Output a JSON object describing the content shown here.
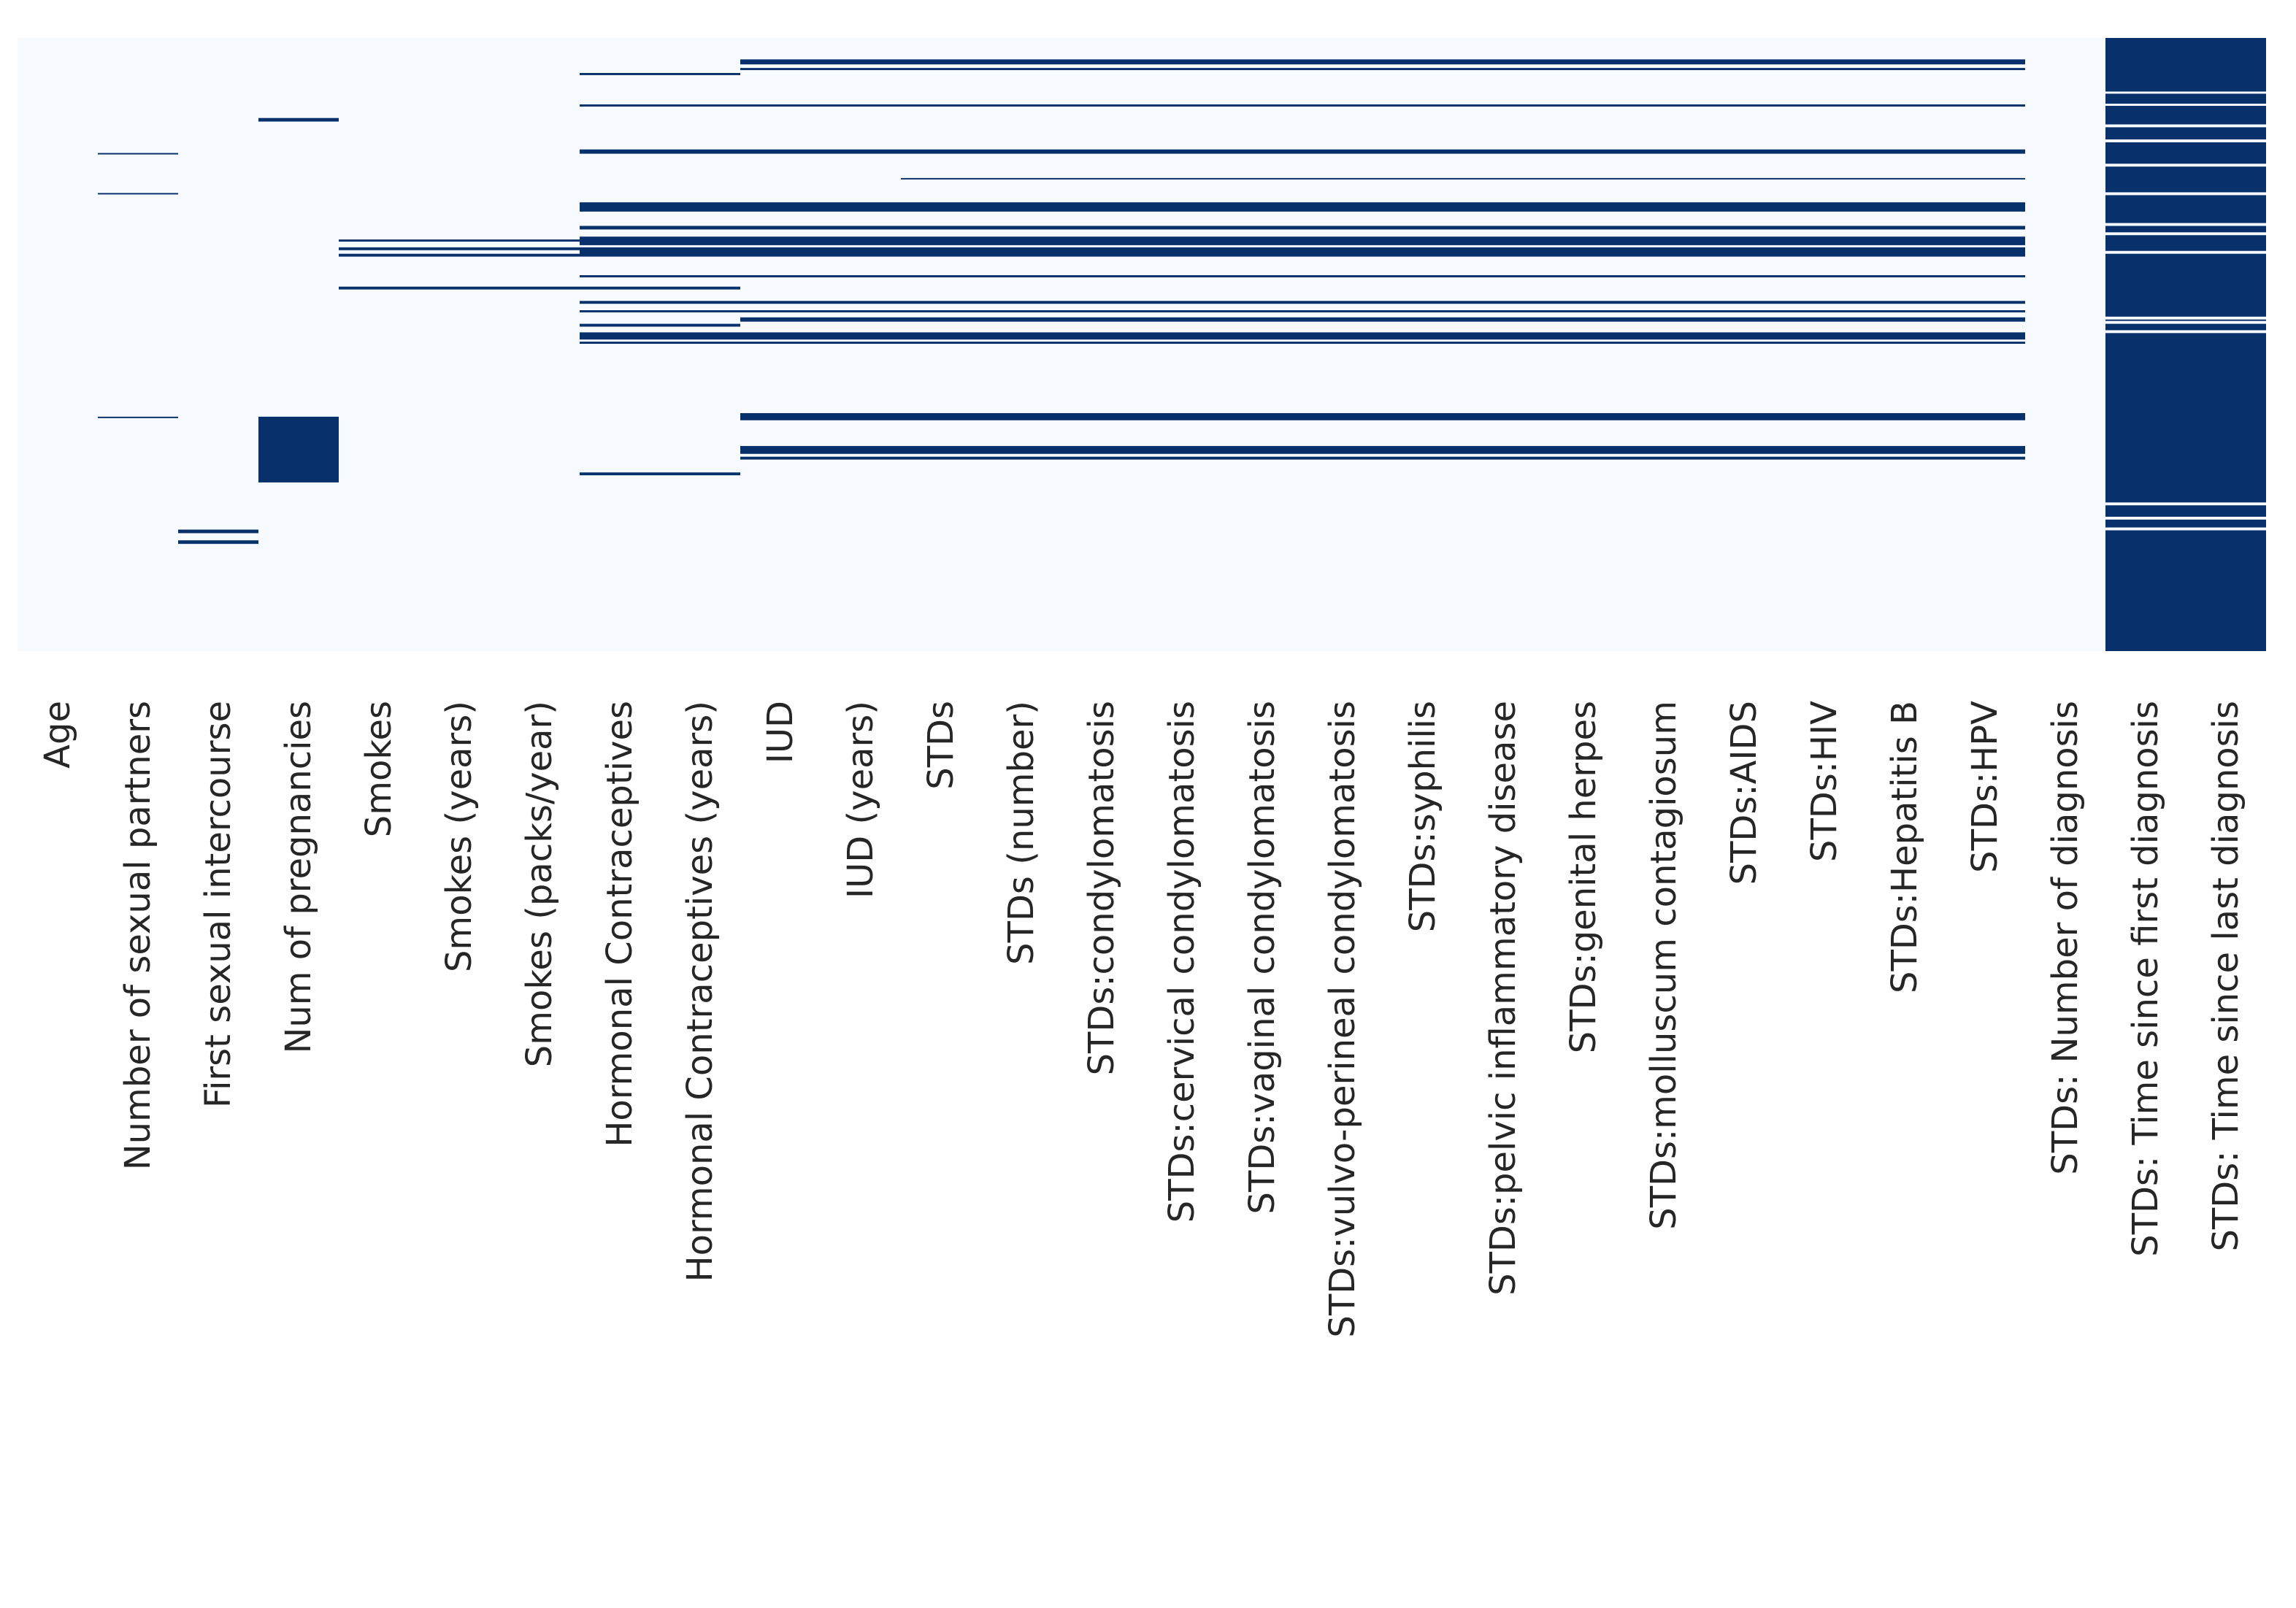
{
  "chart_data": {
    "type": "heatmap",
    "title": "",
    "xlabel": "",
    "ylabel": "",
    "value_meaning": "missing value indicator (1 = missing, 0 = present)",
    "n_rows": 858,
    "colors": {
      "present": "#f7fbff",
      "missing": "#08306b",
      "label": "#262626"
    },
    "columns": [
      "Age",
      "Number of sexual partners",
      "First sexual intercourse",
      "Num of pregnancies",
      "Smokes",
      "Smokes (years)",
      "Smokes (packs/year)",
      "Hormonal Contraceptives",
      "Hormonal Contraceptives (years)",
      "IUD",
      "IUD (years)",
      "STDs",
      "STDs (number)",
      "STDs:condylomatosis",
      "STDs:cervical condylomatosis",
      "STDs:vaginal condylomatosis",
      "STDs:vulvo-perineal condylomatosis",
      "STDs:syphilis",
      "STDs:pelvic inflammatory disease",
      "STDs:genital herpes",
      "STDs:molluscum contagiosum",
      "STDs:AIDS",
      "STDs:HIV",
      "STDs:Hepatitis B",
      "STDs:HPV",
      "STDs: Number of diagnosis",
      "STDs: Time since first diagnosis",
      "STDs: Time since last diagnosis"
    ],
    "missing_segments": [
      {
        "cols": [
          1,
          1
        ],
        "rows": [
          161,
          163
        ]
      },
      {
        "cols": [
          1,
          1
        ],
        "rows": [
          217,
          219
        ]
      },
      {
        "cols": [
          1,
          1
        ],
        "rows": [
          530,
          532
        ]
      },
      {
        "cols": [
          2,
          2
        ],
        "rows": [
          688,
          693
        ]
      },
      {
        "cols": [
          2,
          2
        ],
        "rows": [
          703,
          708
        ]
      },
      {
        "cols": [
          3,
          3
        ],
        "rows": [
          112,
          117
        ]
      },
      {
        "cols": [
          3,
          3
        ],
        "rows": [
          530,
          622
        ]
      },
      {
        "cols": [
          4,
          6
        ],
        "rows": [
          282,
          285
        ]
      },
      {
        "cols": [
          4,
          6
        ],
        "rows": [
          293,
          297
        ]
      },
      {
        "cols": [
          4,
          6
        ],
        "rows": [
          302,
          306
        ]
      },
      {
        "cols": [
          4,
          6
        ],
        "rows": [
          348,
          352
        ]
      },
      {
        "cols": [
          7,
          8
        ],
        "rows": [
          49,
          52
        ]
      },
      {
        "cols": [
          7,
          8
        ],
        "rows": [
          93,
          96
        ]
      },
      {
        "cols": [
          7,
          8
        ],
        "rows": [
          156,
          162
        ]
      },
      {
        "cols": [
          7,
          8
        ],
        "rows": [
          230,
          243
        ]
      },
      {
        "cols": [
          7,
          8
        ],
        "rows": [
          263,
          268
        ]
      },
      {
        "cols": [
          7,
          8
        ],
        "rows": [
          278,
          290
        ]
      },
      {
        "cols": [
          7,
          8
        ],
        "rows": [
          293,
          306
        ]
      },
      {
        "cols": [
          7,
          8
        ],
        "rows": [
          332,
          335
        ]
      },
      {
        "cols": [
          7,
          8
        ],
        "rows": [
          348,
          352
        ]
      },
      {
        "cols": [
          7,
          8
        ],
        "rows": [
          368,
          372
        ]
      },
      {
        "cols": [
          7,
          8
        ],
        "rows": [
          381,
          384
        ]
      },
      {
        "cols": [
          7,
          8
        ],
        "rows": [
          400,
          404
        ]
      },
      {
        "cols": [
          7,
          8
        ],
        "rows": [
          412,
          422
        ]
      },
      {
        "cols": [
          7,
          8
        ],
        "rows": [
          425,
          428
        ]
      },
      {
        "cols": [
          7,
          8
        ],
        "rows": [
          608,
          612
        ]
      },
      {
        "cols": [
          9,
          24
        ],
        "rows": [
          30,
          37
        ]
      },
      {
        "cols": [
          9,
          24
        ],
        "rows": [
          42,
          45
        ]
      },
      {
        "cols": [
          9,
          24
        ],
        "rows": [
          93,
          96
        ]
      },
      {
        "cols": [
          9,
          24
        ],
        "rows": [
          156,
          162
        ]
      },
      {
        "cols": [
          11,
          24
        ],
        "rows": [
          196,
          198
        ]
      },
      {
        "cols": [
          9,
          24
        ],
        "rows": [
          230,
          243
        ]
      },
      {
        "cols": [
          9,
          24
        ],
        "rows": [
          263,
          268
        ]
      },
      {
        "cols": [
          9,
          24
        ],
        "rows": [
          278,
          290
        ]
      },
      {
        "cols": [
          9,
          24
        ],
        "rows": [
          293,
          306
        ]
      },
      {
        "cols": [
          9,
          24
        ],
        "rows": [
          332,
          335
        ]
      },
      {
        "cols": [
          9,
          24
        ],
        "rows": [
          368,
          372
        ]
      },
      {
        "cols": [
          9,
          24
        ],
        "rows": [
          381,
          384
        ]
      },
      {
        "cols": [
          9,
          24
        ],
        "rows": [
          391,
          397
        ]
      },
      {
        "cols": [
          9,
          24
        ],
        "rows": [
          412,
          422
        ]
      },
      {
        "cols": [
          9,
          24
        ],
        "rows": [
          425,
          428
        ]
      },
      {
        "cols": [
          9,
          24
        ],
        "rows": [
          525,
          535
        ]
      },
      {
        "cols": [
          9,
          24
        ],
        "rows": [
          571,
          582
        ]
      },
      {
        "cols": [
          9,
          24
        ],
        "rows": [
          586,
          590
        ]
      },
      {
        "cols": [
          26,
          27
        ],
        "rows": [
          0,
          858
        ]
      }
    ],
    "present_gaps": [
      {
        "cols": [
          26,
          27
        ],
        "rows": [
          75,
          78
        ]
      },
      {
        "cols": [
          26,
          27
        ],
        "rows": [
          92,
          95
        ]
      },
      {
        "cols": [
          26,
          27
        ],
        "rows": [
          121,
          125
        ]
      },
      {
        "cols": [
          26,
          27
        ],
        "rows": [
          142,
          146
        ]
      },
      {
        "cols": [
          26,
          27
        ],
        "rows": [
          176,
          180
        ]
      },
      {
        "cols": [
          26,
          27
        ],
        "rows": [
          216,
          220
        ]
      },
      {
        "cols": [
          26,
          27
        ],
        "rows": [
          259,
          263
        ]
      },
      {
        "cols": [
          26,
          27
        ],
        "rows": [
          272,
          276
        ]
      },
      {
        "cols": [
          26,
          27
        ],
        "rows": [
          298,
          302
        ]
      },
      {
        "cols": [
          26,
          27
        ],
        "rows": [
          390,
          394
        ]
      },
      {
        "cols": [
          26,
          27
        ],
        "rows": [
          396,
          400
        ]
      },
      {
        "cols": [
          26,
          27
        ],
        "rows": [
          409,
          413
        ]
      },
      {
        "cols": [
          26,
          27
        ],
        "rows": [
          650,
          654
        ]
      },
      {
        "cols": [
          26,
          27
        ],
        "rows": [
          670,
          674
        ]
      },
      {
        "cols": [
          26,
          27
        ],
        "rows": [
          685,
          689
        ]
      }
    ]
  }
}
